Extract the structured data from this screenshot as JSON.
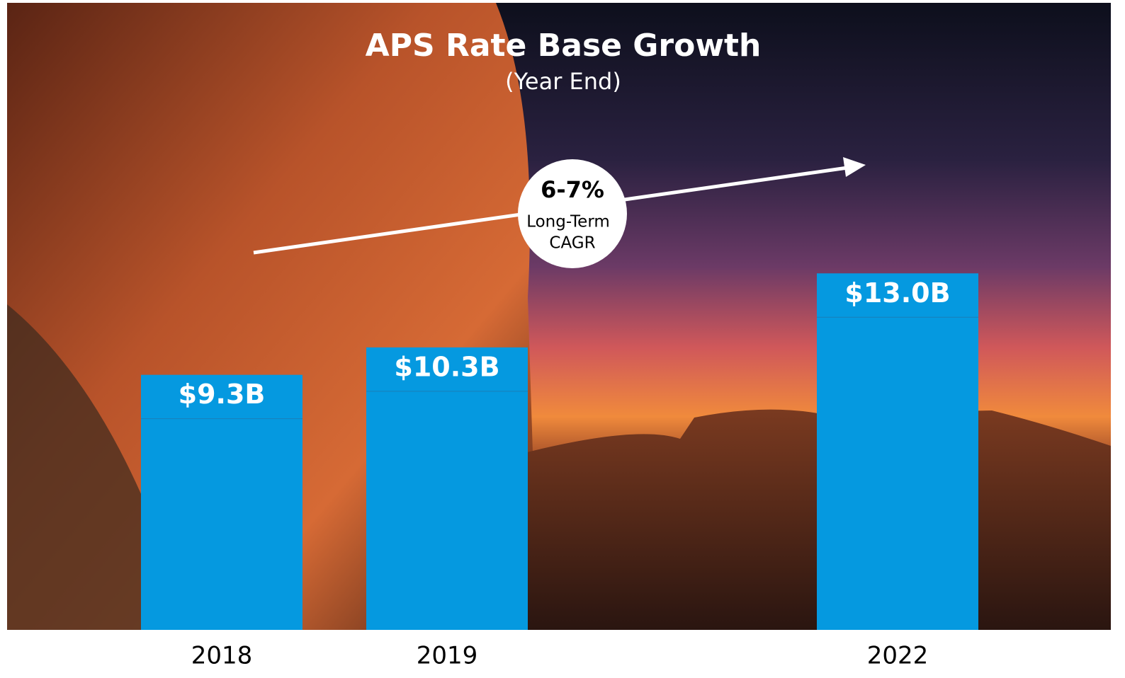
{
  "chart_data": {
    "type": "bar",
    "title": "APS Rate Base Growth",
    "subtitle": "(Year End)",
    "categories": [
      "2018",
      "2019",
      null,
      "2022"
    ],
    "values": [
      9.3,
      10.3,
      null,
      13.0
    ],
    "value_labels": [
      "$9.3B",
      "$10.3B",
      null,
      "$13.0B"
    ],
    "color": "#0599e0",
    "annotation": {
      "value": "6-7%",
      "line1": "Long-Term",
      "line2": "CAGR"
    }
  }
}
